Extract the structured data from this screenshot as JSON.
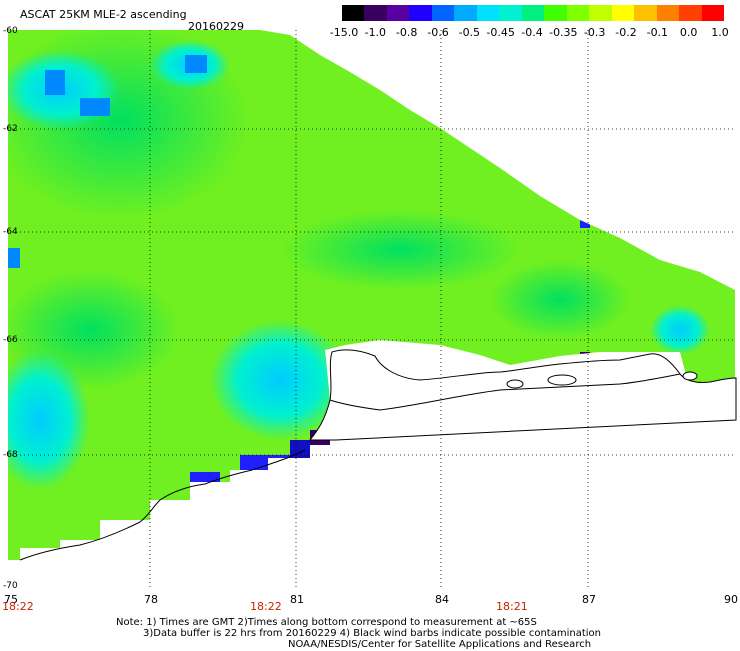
{
  "header": {
    "title": "ASCAT 25KM MLE-2 ascending",
    "date": "20160229"
  },
  "colorbar": {
    "labels": [
      "-15.0",
      "-1.0",
      "-0.8",
      "-0.6",
      "-0.5",
      "-0.45",
      "-0.4",
      "-0.35",
      "-0.3",
      "-0.2",
      "-0.1",
      "0.0",
      "1.0"
    ],
    "colors": [
      "#000000",
      "#3a0060",
      "#5a00a0",
      "#2200ff",
      "#0066ff",
      "#00aaff",
      "#00e0ff",
      "#00f0d0",
      "#00f080",
      "#40ff00",
      "#80ff00",
      "#c0ff00",
      "#ffff00",
      "#ffc000",
      "#ff8000",
      "#ff4000",
      "#ff0000"
    ]
  },
  "axes": {
    "y_ticks": [
      "-60",
      "-62",
      "-64",
      "-66",
      "-68",
      "-70"
    ],
    "x_ticks": [
      "75",
      "78",
      "81",
      "84",
      "87",
      "90"
    ],
    "time_labels": [
      "18:22",
      "18:22",
      "18:21"
    ]
  },
  "footer": {
    "line1": "Note: 1) Times are GMT 2)Times along bottom correspond to measurement at ~65S",
    "line2": "3)Data buffer is 22 hrs from 20160229 4) Black wind barbs indicate possible contamination",
    "line3": "NOAA/NESDIS/Center for Satellite Applications and Research"
  },
  "map_colors": {
    "land": "#ffffff",
    "coast": "#000000",
    "grid": "#000000",
    "dominant": "#80ff00"
  }
}
